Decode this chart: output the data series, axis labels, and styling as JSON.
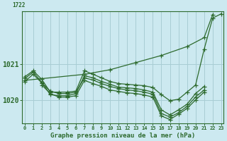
{
  "xlabel": "Graphe pression niveau de la mer (hPa)",
  "bg_color": "#cce9f0",
  "line_color": "#2d6a2d",
  "grid_color": "#a8cdd4",
  "ylim": [
    1019.35,
    1022.5
  ],
  "xlim": [
    -0.3,
    23.3
  ],
  "yticks": [
    1020,
    1021
  ],
  "xticks": [
    0,
    1,
    2,
    3,
    4,
    5,
    6,
    7,
    8,
    9,
    10,
    11,
    12,
    13,
    14,
    15,
    16,
    17,
    18,
    19,
    20,
    21,
    22,
    23
  ],
  "series": [
    {
      "x": [
        0,
        7,
        10,
        13,
        16,
        19,
        21,
        22
      ],
      "y": [
        1020.55,
        1020.72,
        1020.85,
        1021.05,
        1021.25,
        1021.5,
        1021.75,
        1022.4
      ]
    },
    {
      "x": [
        0,
        1,
        2,
        3,
        4,
        5,
        6,
        7,
        8,
        9,
        10,
        11,
        12,
        13,
        14,
        15,
        16,
        17,
        18,
        19,
        20,
        21,
        22,
        23
      ],
      "y": [
        1020.65,
        1020.82,
        1020.58,
        1020.22,
        1020.22,
        1020.22,
        1020.25,
        1020.82,
        1020.72,
        1020.62,
        1020.52,
        1020.46,
        1020.44,
        1020.42,
        1020.4,
        1020.35,
        1020.15,
        1019.98,
        1020.02,
        1020.22,
        1020.42,
        1021.42,
        1022.3,
        1022.42
      ]
    },
    {
      "x": [
        0,
        1,
        2,
        3,
        4,
        5,
        6,
        7,
        8,
        9,
        10,
        11,
        12,
        13,
        14,
        15,
        16,
        17,
        18,
        19,
        20,
        21
      ],
      "y": [
        1020.6,
        1020.78,
        1020.5,
        1020.15,
        1020.12,
        1020.12,
        1020.18,
        1020.68,
        1020.62,
        1020.52,
        1020.44,
        1020.36,
        1020.34,
        1020.32,
        1020.28,
        1020.22,
        1019.72,
        1019.58,
        1019.72,
        1019.88,
        1020.18,
        1020.38
      ]
    },
    {
      "x": [
        0,
        1,
        2,
        3,
        4,
        5,
        6,
        7,
        8,
        9,
        10,
        11,
        12,
        13,
        14,
        15,
        16,
        17,
        18,
        19,
        20,
        21
      ],
      "y": [
        1020.52,
        1020.72,
        1020.48,
        1020.25,
        1020.18,
        1020.18,
        1020.22,
        1020.62,
        1020.56,
        1020.46,
        1020.38,
        1020.32,
        1020.28,
        1020.26,
        1020.22,
        1020.16,
        1019.62,
        1019.52,
        1019.64,
        1019.82,
        1020.08,
        1020.28
      ]
    },
    {
      "x": [
        2,
        3,
        4,
        5,
        6,
        7,
        8,
        9,
        10,
        11,
        12,
        13,
        14,
        15,
        16,
        17,
        18,
        19,
        20,
        21
      ],
      "y": [
        1020.42,
        1020.18,
        1020.08,
        1020.08,
        1020.12,
        1020.55,
        1020.46,
        1020.38,
        1020.28,
        1020.24,
        1020.2,
        1020.18,
        1020.14,
        1020.08,
        1019.55,
        1019.45,
        1019.6,
        1019.76,
        1020.0,
        1020.22
      ]
    }
  ],
  "marker": "+",
  "markersize": 4,
  "linewidth": 0.9
}
